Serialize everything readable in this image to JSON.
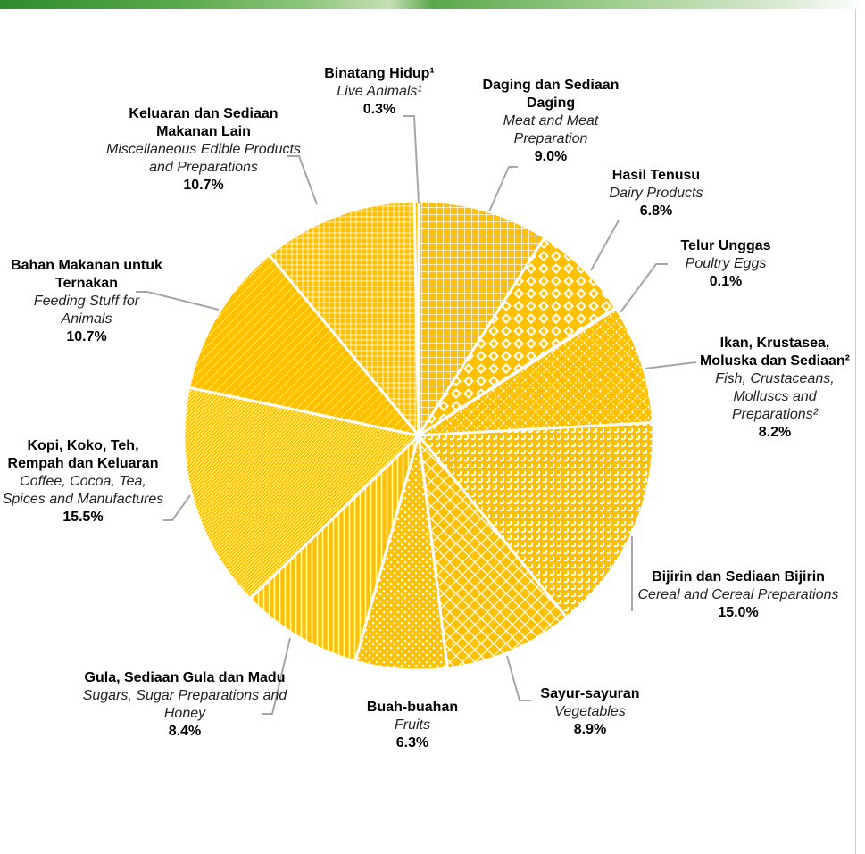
{
  "chart_data": {
    "type": "pie",
    "categories": [
      "Daging dan Sediaan Daging",
      "Hasil Tenusu",
      "Telur Unggas",
      "Ikan, Krustasea, Moluska dan Sediaan²",
      "Bijirin dan Sediaan Bijirin",
      "Sayur-sayuran",
      "Buah-buahan",
      "Gula, Sediaan Gula dan Madu",
      "Kopi, Koko, Teh, Rempah dan Keluaran",
      "Bahan Makanan untuk Ternakan",
      "Keluaran dan Sediaan Makanan Lain",
      "Binatang Hidup¹"
    ],
    "categories_en": [
      "Meat and Meat Preparation",
      "Dairy Products",
      "Poultry Eggs",
      "Fish, Crustaceans, Molluscs and Preparations²",
      "Cereal and Cereal Preparations",
      "Vegetables",
      "Fruits",
      "Sugars, Sugar Preparations and Honey",
      "Coffee, Cocoa, Tea, Spices and Manufactures",
      "Feeding Stuff for Animals",
      "Miscellaneous Edible Products and Preparations",
      "Live Animals¹"
    ],
    "values": [
      9.0,
      6.8,
      0.1,
      8.2,
      15.0,
      8.9,
      6.3,
      8.4,
      15.5,
      10.7,
      10.7,
      0.3
    ],
    "value_labels": [
      "9.0%",
      "6.8%",
      "0.1%",
      "8.2%",
      "15.0%",
      "8.9%",
      "6.3%",
      "8.4%",
      "15.5%",
      "10.7%",
      "10.7%",
      "0.3%"
    ],
    "color": "#ffc000"
  }
}
